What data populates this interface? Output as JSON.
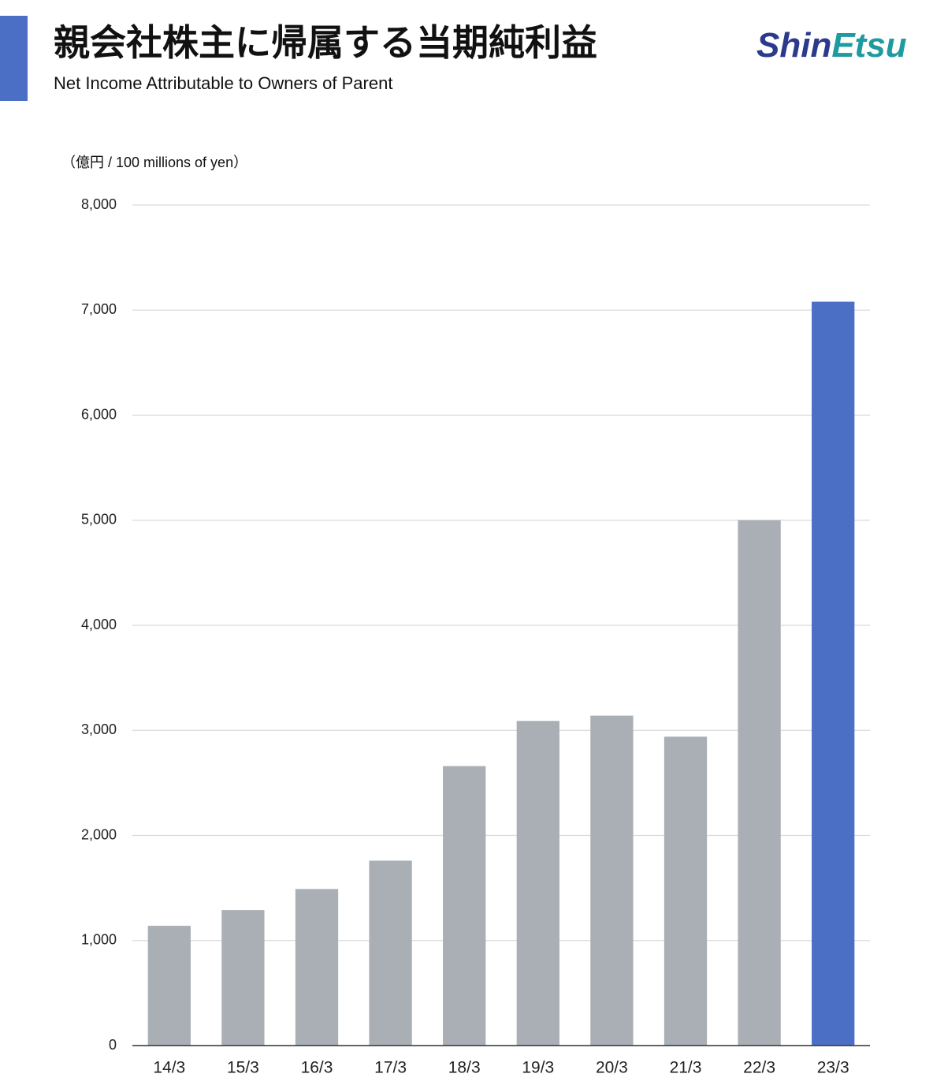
{
  "chart_data": {
    "type": "bar",
    "title": "親会社株主に帰属する当期純利益",
    "subtitle": "Net Income Attributable to Owners of Parent",
    "logo": [
      "Shin",
      "Etsu"
    ],
    "y_label": "（億円 / 100 millions of yen）",
    "categories": [
      "14/3",
      "15/3",
      "16/3",
      "17/3",
      "18/3",
      "19/3",
      "20/3",
      "21/3",
      "22/3",
      "23/3"
    ],
    "values": [
      1140,
      1290,
      1490,
      1760,
      2660,
      3090,
      3140,
      2940,
      5000,
      7080
    ],
    "colors": [
      "#a9afb4",
      "#a9afb4",
      "#a9afb4",
      "#a9afb4",
      "#a9afb4",
      "#a9afb4",
      "#a9afb4",
      "#a9afb4",
      "#a9afb4",
      "#4a6fc4"
    ],
    "ylim": [
      0,
      8000
    ],
    "yticks": [
      0,
      {
        "value": 1000,
        "label": "1,000"
      },
      {
        "value": 2000,
        "label": "2,000"
      },
      {
        "value": 3000,
        "label": "3,000"
      },
      {
        "value": 4000,
        "label": "4,000"
      },
      {
        "value": 5000,
        "label": "5,000"
      },
      {
        "value": 6000,
        "label": "6,000"
      },
      {
        "value": 7000,
        "label": "7,000"
      },
      {
        "value": 8000,
        "label": "8,000"
      }
    ],
    "grid": true
  }
}
